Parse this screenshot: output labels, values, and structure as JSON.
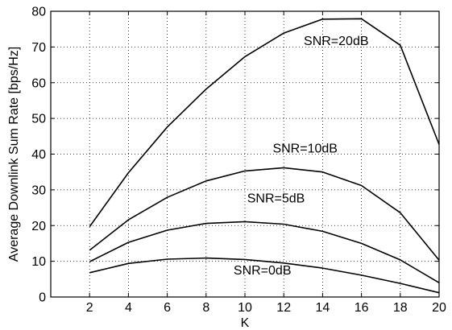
{
  "chart_data": {
    "type": "line",
    "title": "",
    "xlabel": "K",
    "ylabel": "Average Downlink Sum Rate [bps/Hz]",
    "xlim": [
      0,
      20
    ],
    "ylim": [
      0,
      80
    ],
    "xticks": [
      2,
      4,
      6,
      8,
      10,
      12,
      14,
      16,
      18,
      20
    ],
    "yticks": [
      0,
      10,
      20,
      30,
      40,
      50,
      60,
      70,
      80
    ],
    "grid": true,
    "legend": "none",
    "x": [
      2,
      4,
      6,
      8,
      10,
      12,
      14,
      16,
      18,
      20
    ],
    "series": [
      {
        "name": "SNR=20dB",
        "values": [
          19.7,
          34.8,
          47.6,
          58.2,
          67.3,
          73.9,
          77.8,
          77.9,
          70.5,
          42.7
        ]
      },
      {
        "name": "SNR=10dB",
        "values": [
          13.1,
          21.6,
          27.9,
          32.5,
          35.3,
          36.2,
          35.0,
          31.2,
          23.6,
          10.3
        ]
      },
      {
        "name": "SNR=5dB",
        "values": [
          9.9,
          15.3,
          18.7,
          20.6,
          21.1,
          20.4,
          18.4,
          15.0,
          10.4,
          4.0
        ]
      },
      {
        "name": "SNR=0dB",
        "values": [
          6.8,
          9.4,
          10.6,
          10.9,
          10.5,
          9.5,
          8.1,
          6.1,
          3.8,
          1.2
        ]
      }
    ],
    "colors": {
      "line": "#000000",
      "grid": "#000000",
      "background": "#ffffff"
    }
  }
}
